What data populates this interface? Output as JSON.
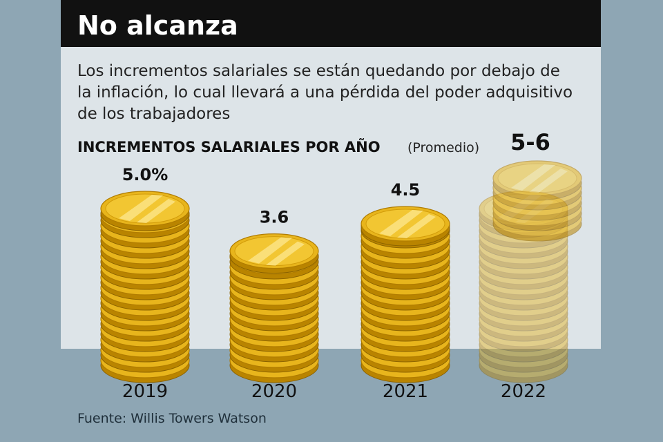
{
  "chart_data": {
    "type": "coin-stack",
    "title": "No alcanza",
    "description": [
      "Los incrementos salariales se están quedando por debajo de",
      "la inflación, lo cual llevará a una pérdida del poder adquisitivo",
      "de los trabajadores"
    ],
    "subtitle": "INCREMENTOS SALARIALES POR AÑO",
    "note": "(Promedio)",
    "categories": [
      "2019",
      "2020",
      "2021",
      "2022"
    ],
    "values": [
      5.0,
      3.6,
      4.5,
      5
    ],
    "upper": [
      null,
      null,
      null,
      6
    ],
    "value_labels": [
      "5.0%",
      "3.6",
      "4.5",
      "5-6"
    ],
    "color": "#e8b51c",
    "source": "Fuente: Willis Towers Watson"
  }
}
